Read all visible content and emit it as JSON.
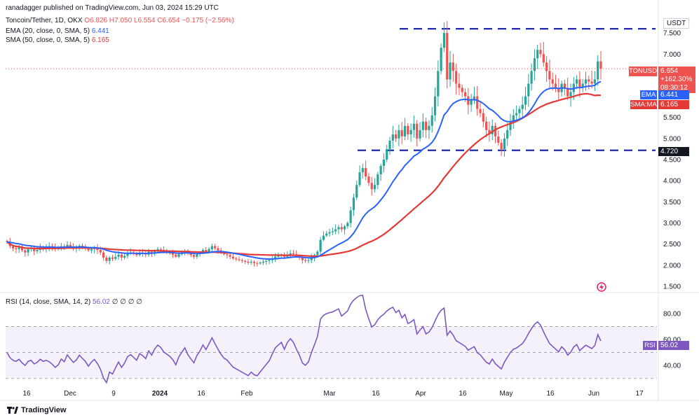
{
  "header": {
    "publisher": "ranadagger published on TradingView.com, Jun 03, 2024 15:29 UTC",
    "symbol_line": "Toncoin/Tether, 1D, OKX",
    "ohlc": "O6.826 H7.050 L6.554 C6.654 −0.175 (−2.56%)",
    "ema_label": "EMA (20, close, 0, SMA, 5)",
    "ema_value": "6.441",
    "sma_label": "SMA (50, close, 0, SMA, 5)",
    "sma_value": "6.165",
    "rsi_label": "RSI (14, close, SMA, 14, 2)",
    "rsi_value": "56.02",
    "rsi_extra": "∅ ∅ ∅ ∅"
  },
  "tags": {
    "currency": "USDT",
    "symbol": "TONUSDT",
    "price": "6.654",
    "change": "+162.30%",
    "countdown": "08:30:12",
    "ema_name": "EMA",
    "ema_val": "6.441",
    "sma_name": "SMA:MA",
    "sma_val": "6.165",
    "support_val": "4.720",
    "rsi_name": "RSI",
    "rsi_val": "56.02"
  },
  "brand": "TradingView",
  "colors": {
    "up": "#26a69a",
    "down": "#ef5350",
    "ema": "#2962ff",
    "sma": "#e53935",
    "rsi": "#7e57c2",
    "level": "#1e2aa8"
  },
  "chart_data": {
    "type": "candlestick",
    "interval": "1D",
    "y_ticks": [
      "7.500",
      "7.000",
      "6.500",
      "6.000",
      "5.500",
      "5.000",
      "4.500",
      "4.000",
      "3.500",
      "3.000",
      "2.500",
      "2.000",
      "1.500"
    ],
    "x_ticks": [
      "16",
      "Dec",
      "9",
      "2024",
      "16",
      "Feb",
      "Mar",
      "16",
      "Apr",
      "16",
      "May",
      "16",
      "Jun",
      "17"
    ],
    "ylim": [
      1.35,
      7.95
    ],
    "levels": [
      7.6,
      4.72
    ],
    "last_price": 6.654,
    "ema_last": 6.441,
    "sma_last": 6.165,
    "close": [
      2.55,
      2.45,
      2.4,
      2.38,
      2.42,
      2.35,
      2.3,
      2.38,
      2.4,
      2.33,
      2.36,
      2.42,
      2.38,
      2.4,
      2.45,
      2.42,
      2.38,
      2.4,
      2.45,
      2.42,
      2.48,
      2.44,
      2.4,
      2.42,
      2.46,
      2.43,
      2.4,
      2.35,
      2.38,
      2.4,
      2.36,
      2.3,
      2.18,
      2.1,
      2.18,
      2.15,
      2.2,
      2.25,
      2.18,
      2.22,
      2.28,
      2.3,
      2.27,
      2.24,
      2.3,
      2.28,
      2.25,
      2.32,
      2.28,
      2.34,
      2.38,
      2.36,
      2.32,
      2.3,
      2.28,
      2.25,
      2.2,
      2.26,
      2.3,
      2.34,
      2.28,
      2.24,
      2.2,
      2.26,
      2.3,
      2.36,
      2.32,
      2.38,
      2.45,
      2.4,
      2.35,
      2.3,
      2.26,
      2.24,
      2.2,
      2.16,
      2.14,
      2.12,
      2.1,
      2.08,
      2.06,
      2.08,
      2.05,
      2.04,
      2.06,
      2.08,
      2.1,
      2.12,
      2.16,
      2.2,
      2.22,
      2.24,
      2.2,
      2.25,
      2.28,
      2.26,
      2.22,
      2.18,
      2.12,
      2.1,
      2.12,
      2.18,
      2.24,
      2.32,
      2.6,
      2.7,
      2.75,
      2.78,
      2.8,
      2.85,
      2.9,
      2.85,
      2.92,
      3.0,
      3.3,
      3.6,
      3.9,
      4.2,
      4.3,
      4.1,
      3.95,
      3.8,
      3.9,
      4.15,
      4.35,
      4.5,
      4.75,
      4.95,
      5.1,
      5.0,
      5.2,
      5.05,
      5.3,
      5.1,
      5.2,
      5.35,
      5.0,
      5.2,
      5.4,
      5.2,
      5.3,
      5.55,
      6.0,
      6.6,
      7.15,
      7.5,
      6.4,
      6.8,
      6.6,
      6.3,
      6.2,
      6.1,
      6.0,
      5.8,
      5.9,
      6.0,
      5.7,
      5.6,
      5.4,
      5.2,
      5.1,
      5.3,
      5.05,
      4.9,
      4.75,
      5.0,
      5.2,
      5.4,
      5.55,
      5.6,
      5.7,
      5.8,
      6.0,
      6.3,
      6.6,
      6.9,
      7.1,
      7.0,
      6.8,
      6.6,
      6.4,
      6.3,
      6.2,
      6.1,
      6.3,
      6.2,
      6.0,
      6.1,
      6.3,
      6.4,
      6.2,
      6.3,
      6.4,
      6.35,
      6.3,
      6.4,
      6.829,
      6.654
    ]
  }
}
